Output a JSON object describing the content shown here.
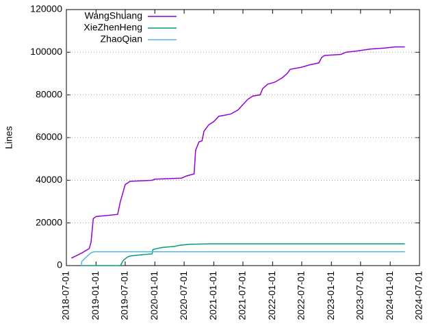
{
  "chart_data": {
    "type": "line",
    "y_label": "Lines",
    "xlim": [
      "2018-07-01",
      "2024-07-01"
    ],
    "xticks": [
      "2018-07-01",
      "2019-01-01",
      "2019-07-01",
      "2020-01-01",
      "2020-07-01",
      "2021-01-01",
      "2021-07-01",
      "2022-01-01",
      "2022-07-01",
      "2023-01-01",
      "2023-07-01",
      "2024-01-01",
      "2024-07-01"
    ],
    "ylim": [
      0,
      120000
    ],
    "yticks": [
      0,
      20000,
      40000,
      60000,
      80000,
      100000,
      120000
    ],
    "grid": true,
    "legend": "top-left",
    "series": [
      {
        "name": "WangShuang",
        "color": "#9400d3",
        "x": [
          "2018-08-01",
          "2018-10-07",
          "2018-11-20",
          "2018-12-01",
          "2018-12-15",
          "2019-01-01",
          "2019-05-15",
          "2019-06-01",
          "2019-06-20",
          "2019-07-01",
          "2019-08-01",
          "2019-12-15",
          "2020-01-01",
          "2020-06-15",
          "2020-07-15",
          "2020-09-01",
          "2020-09-10",
          "2020-10-01",
          "2020-10-20",
          "2020-11-01",
          "2020-12-01",
          "2021-01-01",
          "2021-02-01",
          "2021-04-15",
          "2021-06-01",
          "2021-07-01",
          "2021-08-01",
          "2021-09-01",
          "2021-10-15",
          "2021-11-01",
          "2021-12-01",
          "2022-01-15",
          "2022-03-01",
          "2022-04-01",
          "2022-04-20",
          "2022-07-01",
          "2022-08-15",
          "2022-10-15",
          "2022-11-01",
          "2022-11-20",
          "2023-03-01",
          "2023-04-01",
          "2023-06-01",
          "2023-09-01",
          "2023-12-01",
          "2024-02-01",
          "2024-04-01"
        ],
        "values": [
          3500,
          6000,
          8000,
          11000,
          22000,
          23000,
          24000,
          30000,
          35000,
          38000,
          39500,
          40000,
          40500,
          41000,
          42000,
          43000,
          54000,
          58000,
          58500,
          63000,
          66000,
          67500,
          70000,
          71000,
          73000,
          75500,
          78000,
          79500,
          80000,
          83000,
          85000,
          86000,
          88000,
          90000,
          92000,
          93000,
          94000,
          95000,
          97500,
          98500,
          99000,
          100000,
          100500,
          101500,
          102000,
          102500,
          102500
        ]
      },
      {
        "name": "XieZhenHeng",
        "color": "#009e73",
        "x": [
          "2018-10-01",
          "2019-06-01",
          "2019-06-20",
          "2019-07-15",
          "2019-08-01",
          "2019-10-01",
          "2019-12-15",
          "2019-12-20",
          "2020-01-15",
          "2020-02-15",
          "2020-05-01",
          "2020-06-01",
          "2020-08-01",
          "2020-12-01",
          "2024-04-01"
        ],
        "values": [
          0,
          0,
          2500,
          4000,
          4500,
          5000,
          5500,
          7500,
          8000,
          8500,
          9000,
          9500,
          10000,
          10200,
          10200
        ]
      },
      {
        "name": "ZhaoQian",
        "color": "#56b4e9",
        "x": [
          "2018-10-01",
          "2018-10-05",
          "2018-11-01",
          "2018-12-01",
          "2018-12-20",
          "2024-04-01"
        ],
        "values": [
          0,
          2000,
          4000,
          6000,
          6500,
          6500
        ]
      }
    ]
  }
}
